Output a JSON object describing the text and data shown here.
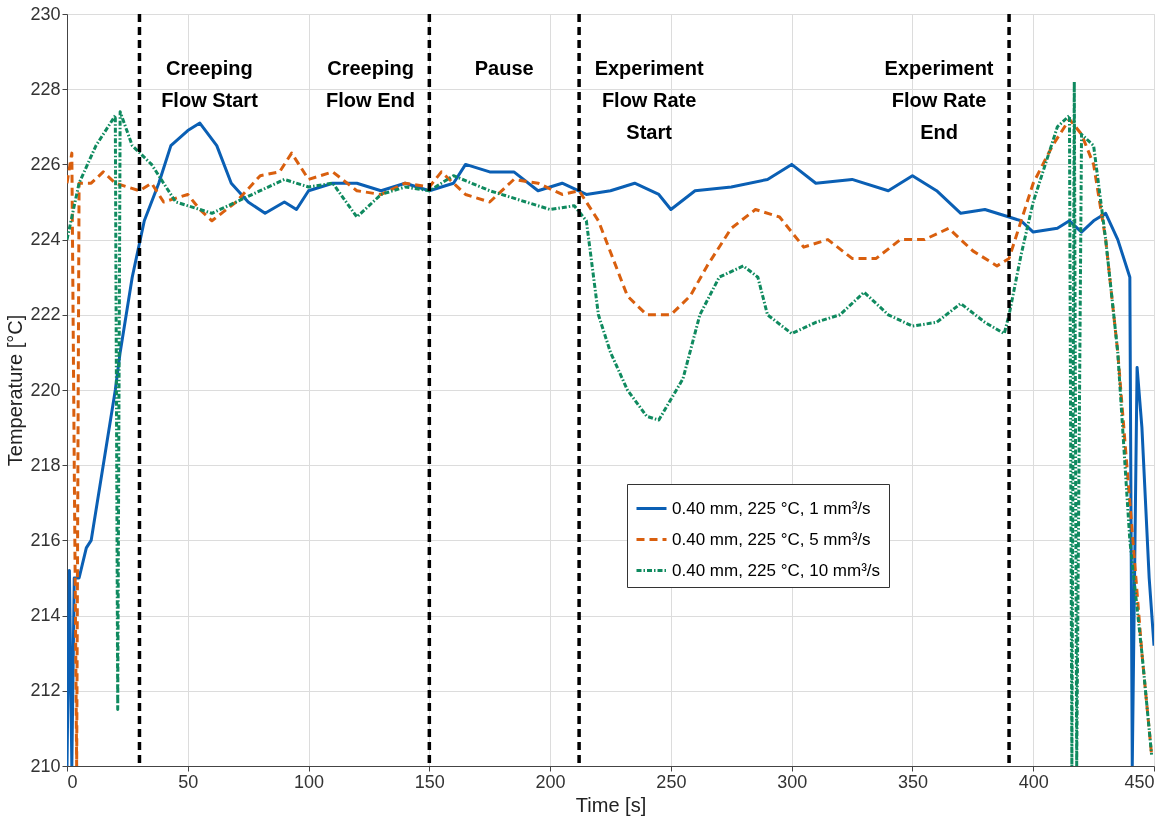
{
  "chart_data": {
    "type": "line",
    "xlabel": "Time [s]",
    "ylabel": "Temperature [°C]",
    "xlim": [
      0,
      450
    ],
    "xticks": [
      0,
      50,
      100,
      150,
      200,
      250,
      300,
      350,
      400,
      450
    ],
    "ylim": [
      210,
      230
    ],
    "yticks": [
      210,
      212,
      214,
      216,
      218,
      220,
      222,
      224,
      226,
      228,
      230
    ],
    "grid": true,
    "legend": "bottom right",
    "marker": "none",
    "series": [
      {
        "name": "0.40 mm, 225 °C, 1 mm³/s",
        "color": "#0a5fb4",
        "line_style": "solid",
        "x": [
          0,
          1,
          2,
          3,
          5,
          8,
          10,
          15,
          20,
          22,
          27,
          32,
          38,
          43,
          50,
          55,
          62,
          68,
          75,
          82,
          90,
          95,
          100,
          110,
          120,
          130,
          140,
          150,
          160,
          165,
          175,
          185,
          195,
          205,
          215,
          225,
          235,
          245,
          250,
          260,
          275,
          290,
          300,
          310,
          325,
          340,
          350,
          360,
          370,
          380,
          390,
          395,
          400,
          410,
          415,
          420,
          425,
          430,
          435,
          440,
          441,
          443,
          445,
          448,
          450
        ],
        "values": [
          210,
          215.2,
          210,
          215,
          215,
          215.8,
          216,
          218,
          220,
          221,
          223,
          224.5,
          225.5,
          226.5,
          226.9,
          227.1,
          226.5,
          225.5,
          225,
          224.7,
          225,
          224.8,
          225.3,
          225.5,
          225.5,
          225.3,
          225.5,
          225.3,
          225.5,
          226,
          225.8,
          225.8,
          225.3,
          225.5,
          225.2,
          225.3,
          225.5,
          225.2,
          224.8,
          225.3,
          225.4,
          225.6,
          226,
          225.5,
          225.6,
          225.3,
          225.7,
          225.3,
          224.7,
          224.8,
          224.6,
          224.5,
          224.2,
          224.3,
          224.5,
          224.2,
          224.5,
          224.7,
          224,
          223,
          210,
          220.6,
          219,
          215,
          213.2
        ]
      },
      {
        "name": "0.40 mm, 225 °C, 5 mm³/s",
        "color": "#d95f0e",
        "line_style": "dashed",
        "x": [
          0,
          2,
          3,
          4,
          5,
          10,
          15,
          20,
          30,
          35,
          40,
          50,
          55,
          60,
          70,
          80,
          88,
          93,
          100,
          110,
          120,
          130,
          140,
          150,
          155,
          165,
          175,
          185,
          195,
          205,
          212,
          220,
          226,
          232,
          240,
          250,
          258,
          265,
          275,
          285,
          295,
          305,
          315,
          325,
          335,
          345,
          355,
          365,
          375,
          385,
          390,
          395,
          400,
          408,
          415,
          420,
          425,
          430,
          435,
          440,
          445,
          449
        ],
        "values": [
          225.5,
          226.3,
          218,
          210,
          225.5,
          225.5,
          225.8,
          225.5,
          225.3,
          225.5,
          225,
          225.2,
          224.8,
          224.5,
          225,
          225.7,
          225.8,
          226.3,
          225.6,
          225.8,
          225.3,
          225.2,
          225.5,
          225.4,
          225.8,
          225.2,
          225,
          225.6,
          225.5,
          225.2,
          225.3,
          224.5,
          223.5,
          222.5,
          222,
          222,
          222.5,
          223.3,
          224.3,
          224.8,
          224.6,
          223.8,
          224,
          223.5,
          223.5,
          224,
          224,
          224.3,
          223.7,
          223.3,
          223.5,
          224.5,
          225.5,
          226.5,
          227.2,
          226.8,
          226,
          224,
          221,
          217,
          213,
          210.3
        ]
      },
      {
        "name": "0.40 mm, 225 °C, 10 mm³/s",
        "color": "#0f8a5f",
        "line_style": "dotted",
        "x": [
          0,
          5,
          12,
          20,
          21,
          22,
          27,
          35,
          40,
          45,
          55,
          60,
          70,
          80,
          90,
          100,
          110,
          120,
          130,
          140,
          150,
          160,
          175,
          190,
          200,
          210,
          215,
          220,
          225,
          232,
          240,
          245,
          255,
          262,
          270,
          280,
          286,
          290,
          300,
          310,
          320,
          330,
          340,
          350,
          360,
          370,
          380,
          388,
          390,
          395,
          400,
          405,
          410,
          415,
          416,
          417,
          418,
          420,
          425,
          430,
          435,
          440,
          445,
          449
        ],
        "values": [
          224,
          225.5,
          226.5,
          227.3,
          211.5,
          227.4,
          226.5,
          226,
          225.5,
          225,
          224.8,
          224.7,
          225,
          225.3,
          225.6,
          225.4,
          225.5,
          224.6,
          225.2,
          225.4,
          225.3,
          225.7,
          225.3,
          225,
          224.8,
          224.9,
          224.5,
          222,
          221,
          220,
          219.3,
          219.2,
          220.3,
          222,
          223,
          223.3,
          223,
          222,
          221.5,
          221.8,
          222,
          222.6,
          222,
          221.7,
          221.8,
          222.3,
          221.8,
          221.5,
          222,
          223.6,
          225,
          226,
          227,
          227.3,
          210,
          228.2,
          210,
          226.8,
          226.5,
          224,
          221,
          216,
          213,
          210.3
        ]
      }
    ],
    "ref_lines": [
      {
        "axis": "x",
        "value": 30,
        "color": "#000000",
        "line_style": "dashed",
        "label": "Creeping\nFlow Start"
      },
      {
        "axis": "x",
        "value": 150,
        "color": "#000000",
        "line_style": "dashed",
        "label": "Creeping\nFlow End"
      },
      {
        "axis": "x",
        "value": 212,
        "color": "#000000",
        "line_style": "dashed",
        "label": "Experiment\nFlow Rate\nStart"
      },
      {
        "axis": "x",
        "value": 390,
        "color": "#000000",
        "line_style": "dashed",
        "label": "Experiment\nFlow Rate\nEnd"
      }
    ],
    "annotations": [
      "Pause"
    ]
  }
}
